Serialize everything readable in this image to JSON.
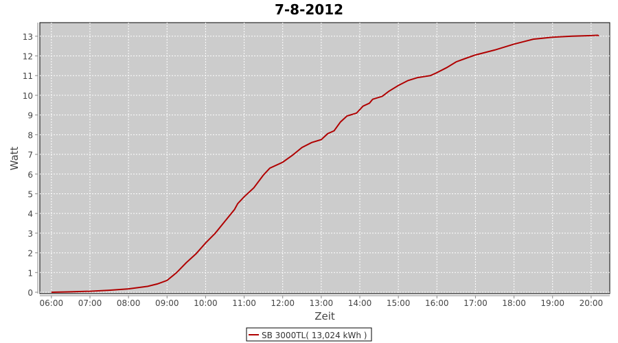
{
  "chart_data": {
    "type": "line",
    "title": "7-8-2012",
    "xlabel": "Zeit",
    "ylabel": "Watt",
    "xlim": [
      "05:42",
      "20:29"
    ],
    "ylim": [
      -0.07,
      13.69
    ],
    "x_ticks": [
      "06:00",
      "07:00",
      "08:00",
      "09:00",
      "10:00",
      "11:00",
      "12:00",
      "13:00",
      "14:00",
      "15:00",
      "16:00",
      "17:00",
      "18:00",
      "19:00",
      "20:00"
    ],
    "y_ticks": [
      0,
      1,
      2,
      3,
      4,
      5,
      6,
      7,
      8,
      9,
      10,
      11,
      12,
      13
    ],
    "grid": true,
    "legend_position": "bottom",
    "plot_background": "#cccccc",
    "series": [
      {
        "name": "SB 3000TL( 13,024 kWh )",
        "color": "#b00000",
        "x": [
          "06:00",
          "06:30",
          "07:00",
          "07:30",
          "08:00",
          "08:30",
          "08:45",
          "09:00",
          "09:15",
          "09:30",
          "09:45",
          "10:00",
          "10:15",
          "10:30",
          "10:45",
          "10:50",
          "11:00",
          "11:15",
          "11:30",
          "11:40",
          "12:00",
          "12:15",
          "12:30",
          "12:45",
          "13:00",
          "13:10",
          "13:20",
          "13:30",
          "13:40",
          "13:55",
          "14:05",
          "14:15",
          "14:20",
          "14:35",
          "14:45",
          "15:00",
          "15:15",
          "15:30",
          "15:50",
          "16:00",
          "16:15",
          "16:30",
          "16:45",
          "17:00",
          "17:30",
          "18:00",
          "18:30",
          "19:00",
          "19:30",
          "20:00",
          "20:10",
          "20:12"
        ],
        "values": [
          0,
          0.02,
          0.05,
          0.1,
          0.17,
          0.3,
          0.42,
          0.6,
          1.0,
          1.5,
          1.95,
          2.5,
          3.0,
          3.6,
          4.2,
          4.5,
          4.85,
          5.3,
          5.95,
          6.3,
          6.6,
          6.95,
          7.35,
          7.6,
          7.75,
          8.05,
          8.2,
          8.65,
          8.95,
          9.1,
          9.45,
          9.6,
          9.8,
          9.95,
          10.2,
          10.5,
          10.75,
          10.9,
          11.0,
          11.15,
          11.4,
          11.7,
          11.88,
          12.05,
          12.3,
          12.6,
          12.85,
          12.95,
          13.0,
          13.03,
          13.05,
          13.02
        ]
      }
    ]
  }
}
